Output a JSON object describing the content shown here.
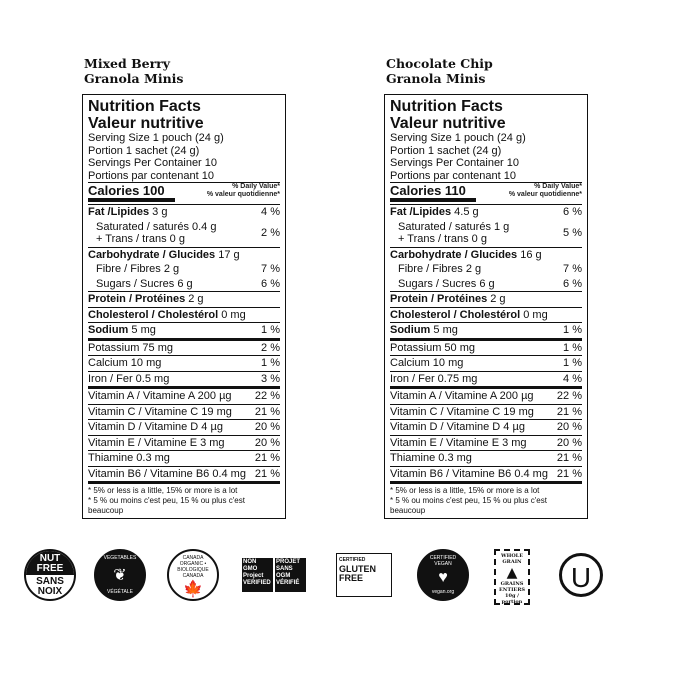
{
  "labels": [
    {
      "product": [
        "Mixed Berry",
        "Granola Minis"
      ],
      "title": [
        "Nutrition Facts",
        "Valeur nutritive"
      ],
      "serving": [
        "Serving Size 1 pouch (24 g)",
        "Portion 1 sachet (24 g)",
        "Servings Per Container 10",
        "Portions par contenant 10"
      ],
      "calories": "Calories 100",
      "dv": [
        "% Daily Value*",
        "% valeur quotidienne*"
      ],
      "rows": [
        {
          "b": "Fat /Lipides",
          "v": " 3 g",
          "p": "4 %"
        },
        {
          "t": "Saturated / saturés 0.4 g",
          "t2": "+ Trans / trans 0 g",
          "p": "2 %",
          "sub": true,
          "rule": "thin"
        },
        {
          "b": "Carbohydrate / Glucides",
          "v": " 17 g",
          "p": ""
        },
        {
          "t": "Fibre / Fibres 2 g",
          "p": "7 %",
          "sub": true
        },
        {
          "t": "Sugars / Sucres 6 g",
          "p": "6 %",
          "sub": true,
          "rule": "thin"
        },
        {
          "b": "Protein / Protéines",
          "v": " 2 g",
          "p": "",
          "rule": "thin"
        },
        {
          "b": "Cholesterol / Cholestérol",
          "v": " 0 mg",
          "p": "",
          "rule": "thin"
        },
        {
          "b": "Sodium",
          "v": " 5 mg",
          "p": "1 %",
          "rule": "heavy"
        },
        {
          "t": "Potassium 75 mg",
          "p": "2 %",
          "rule": "thin"
        },
        {
          "t": "Calcium 10 mg",
          "p": "1 %",
          "rule": "thin"
        },
        {
          "t": "Iron / Fer 0.5 mg",
          "p": "3 %",
          "rule": "thick"
        },
        {
          "t": "Vitamin A / Vitamine A 200 µg",
          "p": "22 %",
          "rule": "thin"
        },
        {
          "t": "Vitamin C / Vitamine C 19 mg",
          "p": "21 %",
          "rule": "thin"
        },
        {
          "t": "Vitamin D / Vitamine D 4 µg",
          "p": "20 %",
          "rule": "thin"
        },
        {
          "t": "Vitamin E / Vitamine E 3 mg",
          "p": "20 %",
          "rule": "thin"
        },
        {
          "t": "Thiamine 0.3 mg",
          "p": "21 %",
          "rule": "thin"
        },
        {
          "t": "Vitamin B6 / Vitamine B6 0.4 mg",
          "p": "21 %",
          "rule": "heavy"
        }
      ],
      "footnote": [
        "* 5% or less is a little, 15% or more is a lot",
        "* 5 % ou moins c'est peu, 15 % ou plus c'est beaucoup"
      ]
    },
    {
      "product": [
        "Chocolate Chip",
        "Granola Minis"
      ],
      "title": [
        "Nutrition Facts",
        "Valeur nutritive"
      ],
      "serving": [
        "Serving Size 1 pouch (24 g)",
        "Portion 1 sachet (24 g)",
        "Servings Per Container 10",
        "Portions par contenant 10"
      ],
      "calories": "Calories 110",
      "dv": [
        "% Daily Value*",
        "% valeur quotidienne*"
      ],
      "rows": [
        {
          "b": "Fat /Lipides",
          "v": " 4.5 g",
          "p": "6 %"
        },
        {
          "t": "Saturated / saturés 1 g",
          "t2": "+ Trans / trans 0 g",
          "p": "5 %",
          "sub": true,
          "rule": "thin"
        },
        {
          "b": "Carbohydrate / Glucides",
          "v": " 16 g",
          "p": ""
        },
        {
          "t": "Fibre / Fibres 2 g",
          "p": "7 %",
          "sub": true
        },
        {
          "t": "Sugars / Sucres 6 g",
          "p": "6 %",
          "sub": true,
          "rule": "thin"
        },
        {
          "b": "Protein / Protéines",
          "v": " 2 g",
          "p": "",
          "rule": "thin"
        },
        {
          "b": "Cholesterol / Cholestérol",
          "v": " 0 mg",
          "p": "",
          "rule": "thin"
        },
        {
          "b": "Sodium",
          "v": " 5 mg",
          "p": "1 %",
          "rule": "heavy"
        },
        {
          "t": "Potassium 50 mg",
          "p": "1 %",
          "rule": "thin"
        },
        {
          "t": "Calcium 10 mg",
          "p": "1 %",
          "rule": "thin"
        },
        {
          "t": "Iron / Fer 0.75 mg",
          "p": "4 %",
          "rule": "thick"
        },
        {
          "t": "Vitamin A / Vitamine A 200 µg",
          "p": "22 %",
          "rule": "thin"
        },
        {
          "t": "Vitamin C / Vitamine C 19 mg",
          "p": "21 %",
          "rule": "thin"
        },
        {
          "t": "Vitamin D / Vitamine D 4 µg",
          "p": "20 %",
          "rule": "thin"
        },
        {
          "t": "Vitamin E / Vitamine E 3 mg",
          "p": "20 %",
          "rule": "thin"
        },
        {
          "t": "Thiamine 0.3 mg",
          "p": "21 %",
          "rule": "thin"
        },
        {
          "t": "Vitamin B6 / Vitamine B6 0.4 mg",
          "p": "21 %",
          "rule": "heavy"
        }
      ],
      "footnote": [
        "* 5% or less is a little, 15% or more is a lot",
        "* 5 % ou moins c'est peu, 15 % ou plus c'est beaucoup"
      ]
    }
  ],
  "logos": [
    {
      "icon": "nut-free-icon",
      "text": [
        "NUT",
        "FREE",
        "SANS",
        "NOIX"
      ]
    },
    {
      "icon": "vegetable-leaf-icon",
      "text": [
        "VEGETABLES",
        "VÉGÉTALE"
      ]
    },
    {
      "icon": "canada-organic-icon",
      "text": [
        "CANADA ORGANIC • BIOLOGIQUE CANADA"
      ]
    },
    {
      "icon": "non-gmo-icon",
      "text": [
        "NON GMO Project VERIFIED",
        "PROJET SANS OGM VÉRIFIÉ"
      ]
    },
    {
      "icon": "gluten-free-icon",
      "text": [
        "CERTIFIED",
        "GLUTEN FREE"
      ]
    },
    {
      "icon": "certified-vegan-icon",
      "text": [
        "CERTIFIED VEGAN",
        "vegan.org"
      ]
    },
    {
      "icon": "whole-grain-icon",
      "text": [
        "WHOLE GRAIN",
        "GRAINS ENTIERS",
        "10g / portion"
      ]
    },
    {
      "icon": "kosher-u-icon",
      "text": [
        "U"
      ]
    }
  ]
}
